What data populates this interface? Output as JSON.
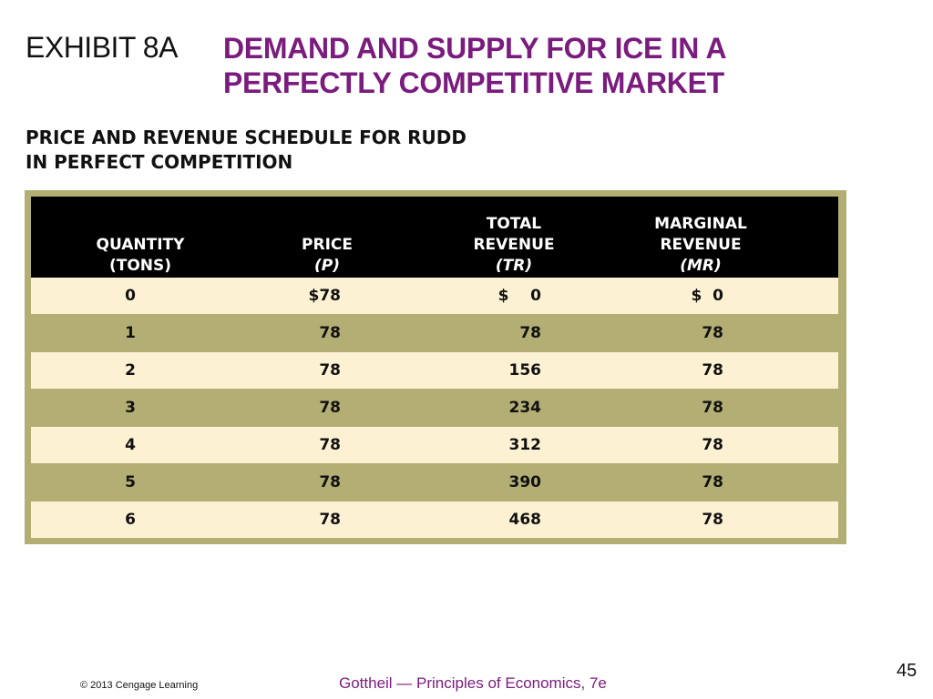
{
  "slide": {
    "exhibit_label": "EXHIBIT 8A",
    "title_line1": "DEMAND AND SUPPLY FOR ICE IN A",
    "title_line2": "PERFECTLY COMPETITIVE MARKET",
    "subtitle_line1": "PRICE AND REVENUE SCHEDULE FOR RUDD",
    "subtitle_line2": "IN PERFECT COMPETITION",
    "page_number": "45",
    "copyright": "© 2013 Cengage Learning",
    "book": "Gottheil — Principles of Economics, 7e"
  },
  "table": {
    "headers": {
      "quantity": [
        "QUANTITY",
        "(TONS)"
      ],
      "price": [
        "PRICE",
        "(P)"
      ],
      "total_revenue": [
        "TOTAL",
        "REVENUE",
        "(TR)"
      ],
      "marginal_revenue": [
        "MARGINAL",
        "REVENUE",
        "(MR)"
      ]
    },
    "rows": [
      {
        "quantity": "0",
        "price": "$78",
        "tr": "$    0",
        "mr": "$  0"
      },
      {
        "quantity": "1",
        "price": "78",
        "tr": "78",
        "mr": "78"
      },
      {
        "quantity": "2",
        "price": "78",
        "tr": "156",
        "mr": "78"
      },
      {
        "quantity": "3",
        "price": "78",
        "tr": "234",
        "mr": "78"
      },
      {
        "quantity": "4",
        "price": "78",
        "tr": "312",
        "mr": "78"
      },
      {
        "quantity": "5",
        "price": "78",
        "tr": "390",
        "mr": "78"
      },
      {
        "quantity": "6",
        "price": "78",
        "tr": "468",
        "mr": "78"
      }
    ]
  },
  "colors": {
    "title": "#7a1b7e",
    "header_bg": "#000000",
    "row_light": "#fdf1d3",
    "row_dark": "#b3ae74"
  }
}
